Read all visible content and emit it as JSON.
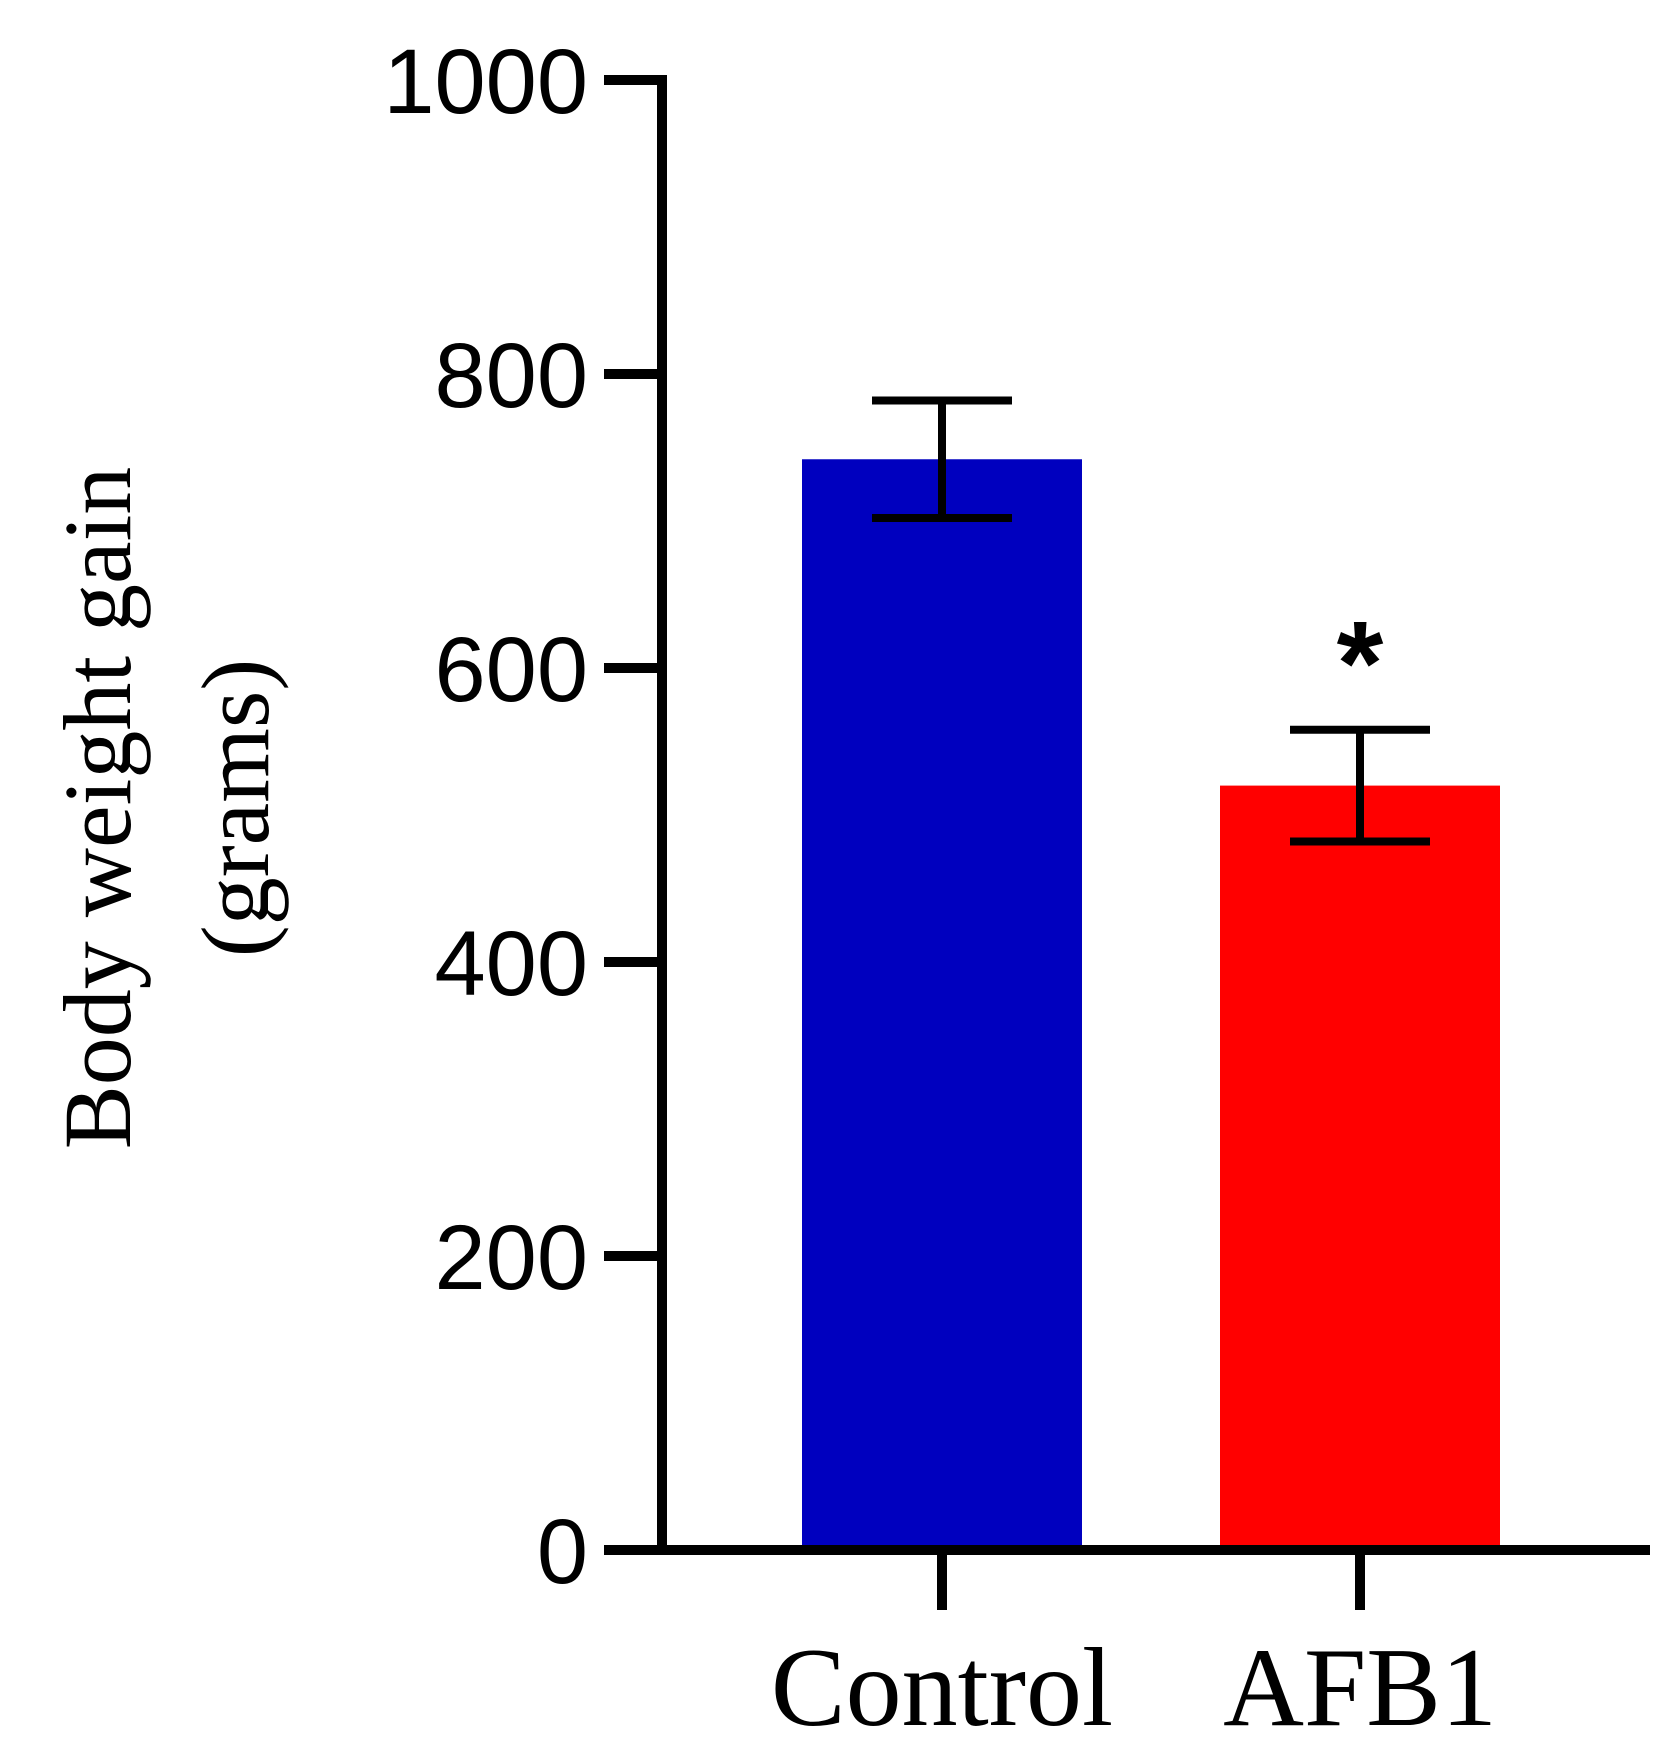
{
  "chart_data": {
    "type": "bar",
    "title": "",
    "xlabel": "",
    "ylabel_lines": [
      "Body weight gain",
      "(grams)"
    ],
    "ylim": [
      0,
      1000
    ],
    "yticks": [
      0,
      200,
      400,
      600,
      800,
      1000
    ],
    "categories": [
      "Control",
      "AFB1"
    ],
    "values": [
      742,
      520
    ],
    "errors": [
      40,
      38
    ],
    "colors": [
      "#0000BF",
      "#FF0000"
    ],
    "annotations": [
      {
        "category": "AFB1",
        "text": "*"
      }
    ],
    "grid": false,
    "legend": "none"
  }
}
